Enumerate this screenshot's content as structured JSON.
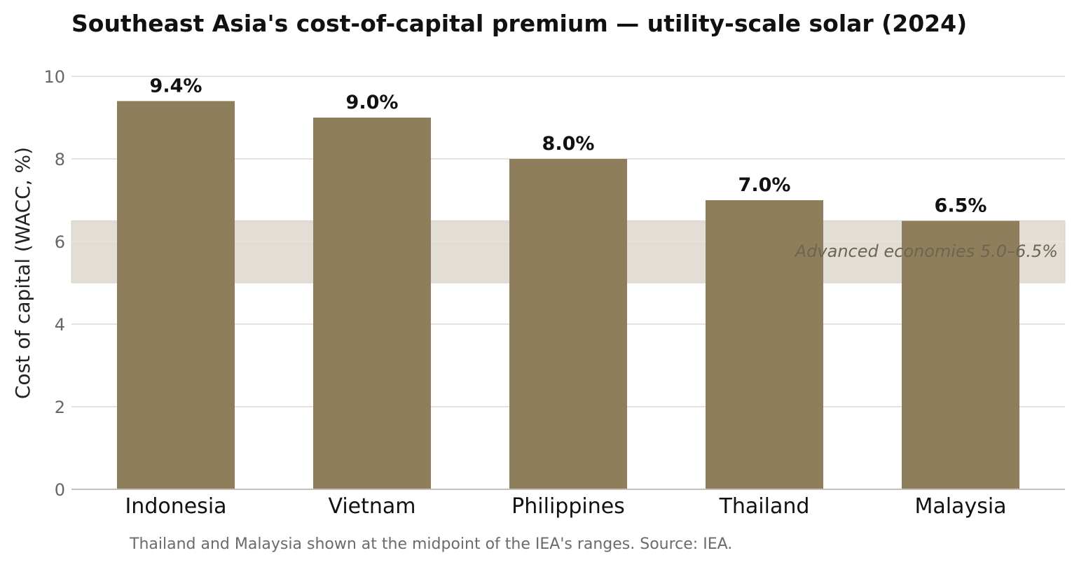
{
  "chart_data": {
    "type": "bar",
    "title": "Southeast Asia's cost-of-capital premium — utility-scale solar (2024)",
    "ylabel": "Cost of capital (WACC, %)",
    "xlabel": "",
    "categories": [
      "Indonesia",
      "Vietnam",
      "Philippines",
      "Thailand",
      "Malaysia"
    ],
    "values": [
      9.4,
      9.0,
      8.0,
      7.0,
      6.5
    ],
    "data_labels": [
      "9.4%",
      "9.0%",
      "8.0%",
      "7.0%",
      "6.5%"
    ],
    "ylim": [
      0,
      10
    ],
    "yticks": [
      0,
      2,
      4,
      6,
      8,
      10
    ],
    "grid": true,
    "reference_band": {
      "label": "Advanced economies 5.0–6.5%",
      "from": 5.0,
      "to": 6.5
    },
    "footnote": "Thailand and Malaysia shown at the midpoint of the IEA's ranges.  Source: IEA.",
    "colors": {
      "bar": "#8f7e5b",
      "band": "#e2ded6",
      "grid": "#e4e2da",
      "axis": "#c4c0b6"
    }
  }
}
